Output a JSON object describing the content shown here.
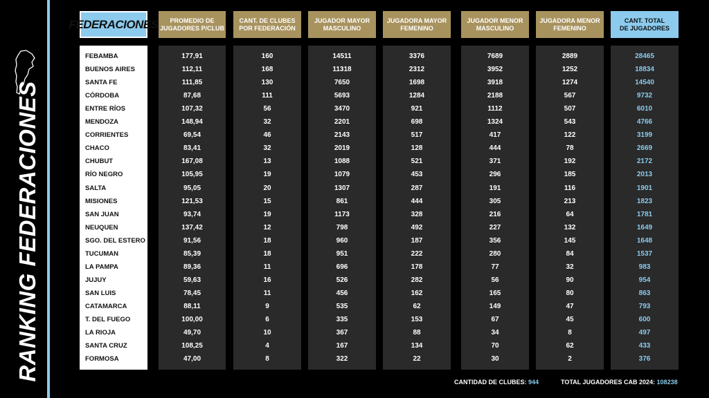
{
  "side_title": "RANKING FEDERACIONES",
  "headers": {
    "federaciones": "FEDERACIONES",
    "promedio": [
      "PROMEDIO DE",
      "JUGADORES P/CLUB"
    ],
    "clubes": [
      "CANT. DE CLUBES",
      "POR FEDERACIÓN"
    ],
    "mayor_masc": [
      "JUGADOR MAYOR",
      "MASCULINO"
    ],
    "mayor_fem": [
      "JUGADORA MAYOR",
      "FEMENINO"
    ],
    "menor_masc": [
      "JUGADOR MENOR",
      "MASCULINO"
    ],
    "menor_fem": [
      "JUGADORA MENOR",
      "FEMENINO"
    ],
    "total": [
      "CANT. TOTAL",
      "DE JUGADORES"
    ]
  },
  "rows": [
    {
      "name": "FEBAMBA",
      "promedio": "177,91",
      "clubes": "160",
      "mayor_masc": "14511",
      "mayor_fem": "3376",
      "menor_masc": "7689",
      "menor_fem": "2889",
      "total": "28465"
    },
    {
      "name": "BUENOS AIRES",
      "promedio": "112,11",
      "clubes": "168",
      "mayor_masc": "11318",
      "mayor_fem": "2312",
      "menor_masc": "3952",
      "menor_fem": "1252",
      "total": "18834"
    },
    {
      "name": "SANTA FE",
      "promedio": "111,85",
      "clubes": "130",
      "mayor_masc": "7650",
      "mayor_fem": "1698",
      "menor_masc": "3918",
      "menor_fem": "1274",
      "total": "14540"
    },
    {
      "name": "CÓRDOBA",
      "promedio": "87,68",
      "clubes": "111",
      "mayor_masc": "5693",
      "mayor_fem": "1284",
      "menor_masc": "2188",
      "menor_fem": "567",
      "total": "9732"
    },
    {
      "name": "ENTRE RÍOS",
      "promedio": "107,32",
      "clubes": "56",
      "mayor_masc": "3470",
      "mayor_fem": "921",
      "menor_masc": "1112",
      "menor_fem": "507",
      "total": "6010"
    },
    {
      "name": "MENDOZA",
      "promedio": "148,94",
      "clubes": "32",
      "mayor_masc": "2201",
      "mayor_fem": "698",
      "menor_masc": "1324",
      "menor_fem": "543",
      "total": "4766"
    },
    {
      "name": "CORRIENTES",
      "promedio": "69,54",
      "clubes": "46",
      "mayor_masc": "2143",
      "mayor_fem": "517",
      "menor_masc": "417",
      "menor_fem": "122",
      "total": "3199"
    },
    {
      "name": "CHACO",
      "promedio": "83,41",
      "clubes": "32",
      "mayor_masc": "2019",
      "mayor_fem": "128",
      "menor_masc": "444",
      "menor_fem": "78",
      "total": "2669"
    },
    {
      "name": "CHUBUT",
      "promedio": "167,08",
      "clubes": "13",
      "mayor_masc": "1088",
      "mayor_fem": "521",
      "menor_masc": "371",
      "menor_fem": "192",
      "total": "2172"
    },
    {
      "name": "RÍO NEGRO",
      "promedio": "105,95",
      "clubes": "19",
      "mayor_masc": "1079",
      "mayor_fem": "453",
      "menor_masc": "296",
      "menor_fem": "185",
      "total": "2013"
    },
    {
      "name": "SALTA",
      "promedio": "95,05",
      "clubes": "20",
      "mayor_masc": "1307",
      "mayor_fem": "287",
      "menor_masc": "191",
      "menor_fem": "116",
      "total": "1901"
    },
    {
      "name": "MISIONES",
      "promedio": "121,53",
      "clubes": "15",
      "mayor_masc": "861",
      "mayor_fem": "444",
      "menor_masc": "305",
      "menor_fem": "213",
      "total": "1823"
    },
    {
      "name": "SAN JUAN",
      "promedio": "93,74",
      "clubes": "19",
      "mayor_masc": "1173",
      "mayor_fem": "328",
      "menor_masc": "216",
      "menor_fem": "64",
      "total": "1781"
    },
    {
      "name": "NEUQUEN",
      "promedio": "137,42",
      "clubes": "12",
      "mayor_masc": "798",
      "mayor_fem": "492",
      "menor_masc": "227",
      "menor_fem": "132",
      "total": "1649"
    },
    {
      "name": "SGO. DEL ESTERO",
      "promedio": "91,56",
      "clubes": "18",
      "mayor_masc": "960",
      "mayor_fem": "187",
      "menor_masc": "356",
      "menor_fem": "145",
      "total": "1648"
    },
    {
      "name": "TUCUMAN",
      "promedio": "85,39",
      "clubes": "18",
      "mayor_masc": "951",
      "mayor_fem": "222",
      "menor_masc": "280",
      "menor_fem": "84",
      "total": "1537"
    },
    {
      "name": "LA PAMPA",
      "promedio": "89,36",
      "clubes": "11",
      "mayor_masc": "696",
      "mayor_fem": "178",
      "menor_masc": "77",
      "menor_fem": "32",
      "total": "983"
    },
    {
      "name": "JUJUY",
      "promedio": "59,63",
      "clubes": "16",
      "mayor_masc": "526",
      "mayor_fem": "282",
      "menor_masc": "56",
      "menor_fem": "90",
      "total": "954"
    },
    {
      "name": "SAN LUIS",
      "promedio": "78,45",
      "clubes": "11",
      "mayor_masc": "456",
      "mayor_fem": "162",
      "menor_masc": "165",
      "menor_fem": "80",
      "total": "863"
    },
    {
      "name": "CATAMARCA",
      "promedio": "88,11",
      "clubes": "9",
      "mayor_masc": "535",
      "mayor_fem": "62",
      "menor_masc": "149",
      "menor_fem": "47",
      "total": "793"
    },
    {
      "name": "T. DEL FUEGO",
      "promedio": "100,00",
      "clubes": "6",
      "mayor_masc": "335",
      "mayor_fem": "153",
      "menor_masc": "67",
      "menor_fem": "45",
      "total": "600"
    },
    {
      "name": "LA RIOJA",
      "promedio": "49,70",
      "clubes": "10",
      "mayor_masc": "367",
      "mayor_fem": "88",
      "menor_masc": "34",
      "menor_fem": "8",
      "total": "497"
    },
    {
      "name": "SANTA CRUZ",
      "promedio": "108,25",
      "clubes": "4",
      "mayor_masc": "167",
      "mayor_fem": "134",
      "menor_masc": "70",
      "menor_fem": "62",
      "total": "433"
    },
    {
      "name": "FORMOSA",
      "promedio": "47,00",
      "clubes": "8",
      "mayor_masc": "322",
      "mayor_fem": "22",
      "menor_masc": "30",
      "menor_fem": "2",
      "total": "376"
    }
  ],
  "footer": {
    "clubes_label": "CANTIDAD DE CLUBES:",
    "clubes_value": "944",
    "total_label": "TOTAL JUGADORES CAB 2024:",
    "total_value": "108238"
  },
  "icons": {
    "map": "argentina-map-icon"
  },
  "colors": {
    "accent_blue": "#8ccbee",
    "gold": "#a8925e",
    "cell_bg": "#2a2a2a"
  }
}
